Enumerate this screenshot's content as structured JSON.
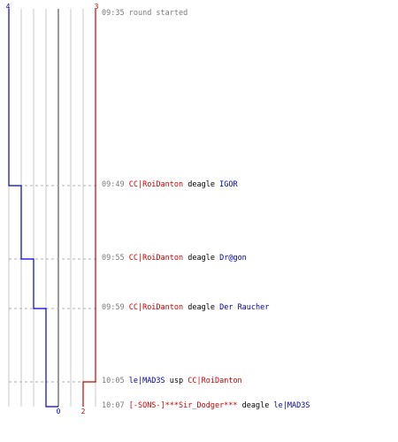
{
  "chart_data": {
    "type": "line",
    "series": [
      {
        "color": "#0000cc",
        "start": 4,
        "values": [
          4,
          3,
          2,
          1,
          0,
          0
        ]
      },
      {
        "color": "#cc0000",
        "start": 3,
        "values": [
          3,
          3,
          3,
          3,
          2,
          2
        ]
      }
    ],
    "top_labels": [
      "4",
      "3"
    ],
    "bottom_labels": [
      "0",
      "2"
    ]
  },
  "events": [
    {
      "time": "09:35",
      "parts": [
        {
          "text": "round started",
          "style": "gray"
        }
      ]
    },
    {
      "time": "09:49",
      "parts": [
        {
          "text": "CC|RoiDanton",
          "style": "red"
        },
        {
          "text": " deagle ",
          "style": "plain"
        },
        {
          "text": "IGOR",
          "style": "blue"
        }
      ]
    },
    {
      "time": "09:55",
      "parts": [
        {
          "text": "CC|RoiDanton",
          "style": "red"
        },
        {
          "text": " deagle ",
          "style": "plain"
        },
        {
          "text": "Dr@gon",
          "style": "blue"
        }
      ]
    },
    {
      "time": "09:59",
      "parts": [
        {
          "text": "CC|RoiDanton",
          "style": "red"
        },
        {
          "text": " deagle ",
          "style": "plain"
        },
        {
          "text": "Der Raucher",
          "style": "blue"
        }
      ]
    },
    {
      "time": "10:05",
      "parts": [
        {
          "text": "le|MAD3S",
          "style": "blue"
        },
        {
          "text": " usp ",
          "style": "plain"
        },
        {
          "text": "CC|RoiDanton",
          "style": "red"
        }
      ]
    },
    {
      "time": "10:07",
      "parts": [
        {
          "text": "[-SONS-]***Sir_Dodger***",
          "style": "red"
        },
        {
          "text": " deagle ",
          "style": "plain"
        },
        {
          "text": "le|MAD3S",
          "style": "blue"
        }
      ]
    }
  ]
}
